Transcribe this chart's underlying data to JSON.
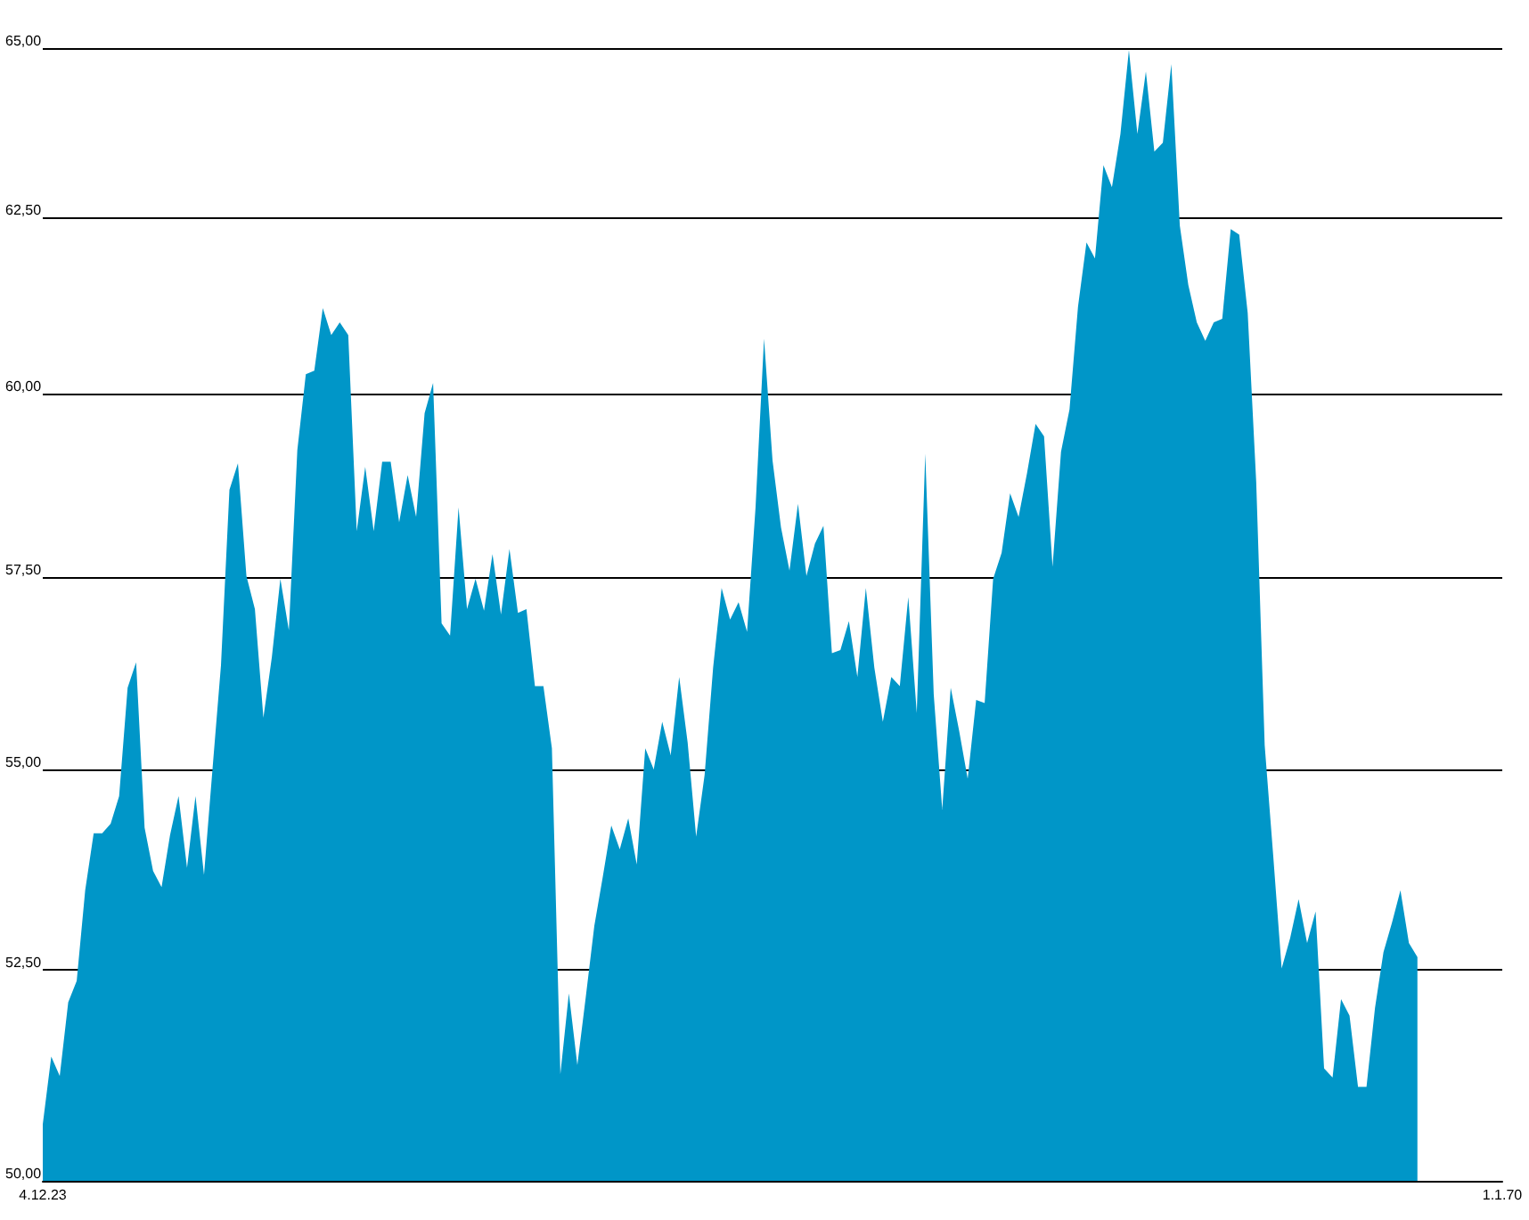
{
  "chart_data": {
    "type": "area",
    "color": "#0096c8",
    "log": true,
    "grid": "y",
    "ylim": [
      50,
      65
    ],
    "yticks": [
      {
        "value": 50,
        "label": "50,00"
      },
      {
        "value": 52.5,
        "label": "52,50"
      },
      {
        "value": 55,
        "label": "55,00"
      },
      {
        "value": 57.5,
        "label": "57,50"
      },
      {
        "value": 60,
        "label": "60,00"
      },
      {
        "value": 62.5,
        "label": "62,50"
      },
      {
        "value": 65,
        "label": "65,00"
      }
    ],
    "categories": [
      "4.12.23",
      null,
      null,
      null,
      null,
      null,
      null,
      null,
      null,
      null,
      null,
      null,
      null,
      null,
      null,
      null,
      null,
      null,
      null,
      null,
      null,
      null,
      null,
      null,
      null,
      null,
      null,
      null,
      null,
      null,
      null,
      null,
      null,
      null,
      null,
      null,
      null,
      null,
      null,
      null,
      null,
      null,
      null,
      null,
      null,
      null,
      null,
      null,
      null,
      null,
      null,
      null,
      null,
      null,
      null,
      null,
      null,
      null,
      null,
      null,
      null,
      null,
      null,
      null,
      null,
      null,
      null,
      null,
      null,
      null,
      null,
      null,
      null,
      null,
      null,
      null,
      null,
      null,
      null,
      null,
      null,
      null,
      null,
      null,
      null,
      null,
      null,
      null,
      null,
      null,
      null,
      null,
      null,
      null,
      null,
      null,
      null,
      null,
      null,
      null,
      null,
      null,
      null,
      null,
      null,
      null,
      null,
      null,
      null,
      null,
      null,
      null,
      null,
      null,
      null,
      null,
      null,
      null,
      null,
      null,
      null,
      null,
      null,
      null,
      null,
      null,
      null,
      null,
      null,
      null,
      null,
      null,
      null,
      null,
      null,
      null,
      null,
      null,
      null,
      null,
      null,
      null,
      null,
      null,
      null,
      null,
      null,
      null,
      null,
      null,
      null,
      null,
      null,
      null,
      null,
      null,
      null,
      null,
      null,
      null,
      null,
      null,
      null,
      null,
      null,
      null,
      null,
      null,
      null,
      null,
      null,
      null,
      "1.1.70"
    ],
    "values": [
      50.66,
      51.46,
      51.23,
      52.11,
      52.37,
      53.48,
      54.19,
      54.19,
      54.31,
      54.66,
      56.05,
      56.38,
      54.26,
      53.72,
      53.52,
      54.17,
      54.66,
      53.76,
      54.66,
      53.67,
      55.0,
      56.34,
      58.68,
      59.04,
      57.52,
      57.08,
      55.66,
      56.45,
      57.48,
      56.8,
      59.22,
      60.27,
      60.32,
      61.2,
      60.82,
      61.0,
      60.82,
      58.12,
      58.99,
      58.12,
      59.06,
      59.06,
      58.24,
      58.88,
      58.31,
      59.73,
      60.15,
      56.89,
      56.73,
      58.44,
      57.08,
      57.48,
      57.06,
      57.81,
      57.01,
      57.88,
      57.03,
      57.08,
      56.07,
      56.07,
      55.27,
      51.25,
      52.22,
      51.36,
      52.18,
      53.04,
      53.65,
      54.29,
      53.99,
      54.38,
      53.8,
      55.27,
      55.0,
      55.61,
      55.18,
      56.19,
      55.34,
      54.15,
      54.93,
      56.31,
      57.36,
      56.94,
      57.17,
      56.78,
      58.44,
      60.77,
      59.08,
      58.17,
      57.59,
      58.49,
      57.52,
      57.95,
      58.19,
      56.5,
      56.54,
      56.92,
      56.19,
      57.36,
      56.31,
      55.61,
      56.19,
      56.07,
      57.24,
      55.72,
      59.17,
      55.96,
      54.49,
      56.05,
      55.49,
      54.88,
      55.89,
      55.85,
      57.48,
      57.83,
      58.63,
      58.31,
      58.91,
      59.58,
      59.41,
      57.64,
      59.2,
      59.78,
      61.22,
      62.14,
      61.91,
      63.26,
      62.94,
      63.72,
      64.97,
      63.72,
      64.65,
      63.46,
      63.59,
      64.76,
      62.38,
      61.53,
      61.0,
      60.74,
      61.0,
      61.05,
      62.33,
      62.25,
      61.13,
      58.79,
      55.31,
      53.92,
      52.52,
      52.89,
      53.37,
      52.83,
      53.22,
      51.32,
      51.21,
      52.15,
      51.95,
      51.1,
      51.1,
      52.04,
      52.72,
      53.08,
      53.48,
      52.83,
      52.66,
      null,
      null,
      null,
      null,
      null,
      null,
      null,
      null,
      null,
      null
    ]
  }
}
